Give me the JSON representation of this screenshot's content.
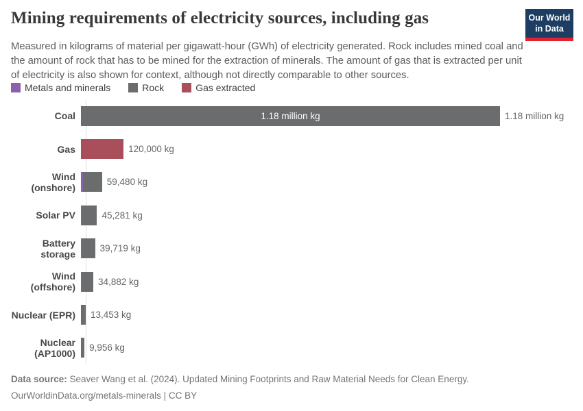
{
  "header": {
    "title": "Mining requirements of electricity sources, including gas",
    "subtitle": "Measured in kilograms of material per gigawatt-hour (GWh) of electricity generated. Rock includes mined coal and the amount of rock that has to be mined for the extraction of minerals. The amount of gas that is extracted per unit of electricity is also shown for context, although not directly comparable to other sources."
  },
  "logo": {
    "line1": "Our World",
    "line2": "in Data"
  },
  "colors": {
    "metals": "#8c61aa",
    "rock": "#6b6c6e",
    "gas": "#a94f5c",
    "axis": "#dcdcdc",
    "logo_navy": "#1d3d63",
    "logo_red": "#e0232e"
  },
  "legend": {
    "items": [
      {
        "label": "Metals and minerals",
        "color_key": "metals"
      },
      {
        "label": "Rock",
        "color_key": "rock"
      },
      {
        "label": "Gas extracted",
        "color_key": "gas"
      }
    ]
  },
  "chart_data": {
    "type": "bar",
    "orientation": "horizontal",
    "unit": "kg per GWh",
    "xlim": [
      0,
      1180000
    ],
    "grid": false,
    "legend_position": "top-left",
    "categories": [
      "Coal",
      "Gas",
      "Wind (onshore)",
      "Solar PV",
      "Battery storage",
      "Wind (offshore)",
      "Nuclear (EPR)",
      "Nuclear (AP1000)"
    ],
    "rows": [
      {
        "category": "Coal",
        "value": 1180000,
        "label": "1.18 million kg",
        "inside_label": "1.18 million kg",
        "series": "rock",
        "metals_value": 0
      },
      {
        "category": "Gas",
        "value": 120000,
        "label": "120,000 kg",
        "series": "gas",
        "metals_value": 0
      },
      {
        "category": "Wind (onshore)",
        "value": 59480,
        "label": "59,480 kg",
        "series": "rock",
        "metals_value": 5500
      },
      {
        "category": "Solar PV",
        "value": 45281,
        "label": "45,281 kg",
        "series": "rock",
        "metals_value": 2600
      },
      {
        "category": "Battery storage",
        "value": 39719,
        "label": "39,719 kg",
        "series": "rock",
        "metals_value": 1900
      },
      {
        "category": "Wind (offshore)",
        "value": 34882,
        "label": "34,882 kg",
        "series": "rock",
        "metals_value": 2600
      },
      {
        "category": "Nuclear (EPR)",
        "value": 13453,
        "label": "13,453 kg",
        "series": "rock",
        "metals_value": 0
      },
      {
        "category": "Nuclear (AP1000)",
        "value": 9956,
        "label": "9,956 kg",
        "series": "rock",
        "metals_value": 0
      }
    ]
  },
  "footer": {
    "source_label": "Data source:",
    "source_text": " Seaver Wang et al. (2024). Updated Mining Footprints and Raw Material Needs for Clean Energy.",
    "line2": "OurWorldinData.org/metals-minerals | CC BY"
  }
}
